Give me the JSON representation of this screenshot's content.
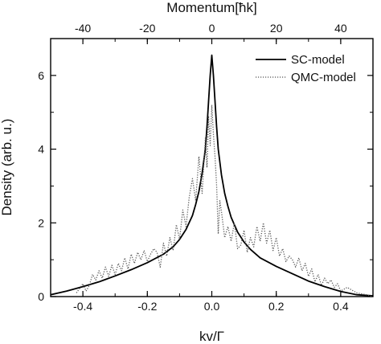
{
  "chart_data": {
    "type": "line",
    "title": "",
    "xlabel": "kv/Γ",
    "ylabel": "Density (arb. u.)",
    "top_xlabel": "Momentum[ħk]",
    "xlim": [
      -0.5,
      0.5
    ],
    "ylim": [
      0,
      7
    ],
    "x_ticks": [
      -0.4,
      -0.2,
      0.0,
      0.2,
      0.4
    ],
    "y_ticks": [
      0,
      2,
      4,
      6
    ],
    "top_ticks": [
      -40,
      -20,
      0,
      20,
      40
    ],
    "top_ticks_per_x": 100,
    "grid": false,
    "legend_position": "top-right",
    "series": [
      {
        "name": "SC-model",
        "style": "solid",
        "color": "#000000",
        "x": [
          -0.5,
          -0.45,
          -0.4,
          -0.35,
          -0.3,
          -0.25,
          -0.2,
          -0.15,
          -0.12,
          -0.1,
          -0.08,
          -0.06,
          -0.05,
          -0.04,
          -0.03,
          -0.02,
          -0.015,
          -0.01,
          -0.005,
          0.0,
          0.005,
          0.01,
          0.015,
          0.02,
          0.03,
          0.04,
          0.05,
          0.06,
          0.08,
          0.1,
          0.12,
          0.15,
          0.2,
          0.25,
          0.3,
          0.35,
          0.4,
          0.45,
          0.5
        ],
        "values": [
          0.05,
          0.15,
          0.27,
          0.4,
          0.56,
          0.73,
          0.92,
          1.15,
          1.35,
          1.55,
          1.82,
          2.2,
          2.5,
          2.85,
          3.35,
          4.0,
          4.6,
          5.3,
          6.0,
          6.55,
          6.0,
          5.3,
          4.6,
          4.0,
          3.3,
          2.8,
          2.45,
          2.15,
          1.75,
          1.48,
          1.28,
          1.05,
          0.82,
          0.62,
          0.42,
          0.27,
          0.14,
          0.05,
          0.02
        ]
      },
      {
        "name": "QMC-model",
        "style": "dotted",
        "color": "#555555",
        "x": [
          -0.42,
          -0.4,
          -0.39,
          -0.38,
          -0.37,
          -0.36,
          -0.35,
          -0.34,
          -0.33,
          -0.32,
          -0.31,
          -0.3,
          -0.29,
          -0.28,
          -0.27,
          -0.26,
          -0.25,
          -0.24,
          -0.23,
          -0.22,
          -0.21,
          -0.2,
          -0.19,
          -0.18,
          -0.17,
          -0.16,
          -0.15,
          -0.14,
          -0.13,
          -0.12,
          -0.11,
          -0.1,
          -0.09,
          -0.08,
          -0.07,
          -0.06,
          -0.05,
          -0.04,
          -0.03,
          -0.02,
          -0.015,
          -0.01,
          -0.005,
          0.0,
          0.005,
          0.01,
          0.015,
          0.02,
          0.025,
          0.03,
          0.04,
          0.05,
          0.06,
          0.07,
          0.08,
          0.09,
          0.1,
          0.11,
          0.12,
          0.13,
          0.14,
          0.15,
          0.16,
          0.17,
          0.18,
          0.19,
          0.2,
          0.21,
          0.22,
          0.23,
          0.24,
          0.25,
          0.26,
          0.27,
          0.28,
          0.29,
          0.3,
          0.31,
          0.32,
          0.33,
          0.34,
          0.35,
          0.36,
          0.37,
          0.38,
          0.39,
          0.4,
          0.42,
          0.45,
          0.48,
          0.5
        ],
        "values": [
          0.1,
          0.35,
          0.15,
          0.3,
          0.6,
          0.45,
          0.7,
          0.5,
          0.8,
          0.55,
          0.85,
          0.6,
          0.9,
          0.7,
          1.05,
          0.75,
          1.15,
          0.9,
          1.2,
          1.0,
          1.25,
          0.95,
          1.15,
          1.3,
          1.2,
          0.8,
          1.45,
          1.1,
          1.6,
          1.25,
          1.95,
          1.55,
          2.35,
          1.9,
          2.7,
          3.2,
          2.6,
          3.8,
          2.8,
          4.3,
          3.5,
          4.9,
          4.1,
          5.2,
          4.4,
          3.8,
          3.0,
          1.7,
          2.6,
          2.3,
          1.6,
          1.9,
          1.5,
          2.0,
          1.3,
          1.4,
          1.8,
          1.2,
          1.6,
          1.35,
          1.9,
          1.5,
          2.0,
          1.45,
          1.8,
          1.25,
          1.6,
          1.1,
          1.3,
          0.95,
          1.1,
          1.0,
          0.8,
          1.05,
          0.7,
          0.9,
          0.55,
          0.75,
          0.4,
          0.6,
          0.3,
          0.5,
          0.35,
          0.45,
          0.25,
          0.35,
          0.15,
          0.25,
          0.1,
          0.05,
          0.0
        ]
      }
    ]
  }
}
